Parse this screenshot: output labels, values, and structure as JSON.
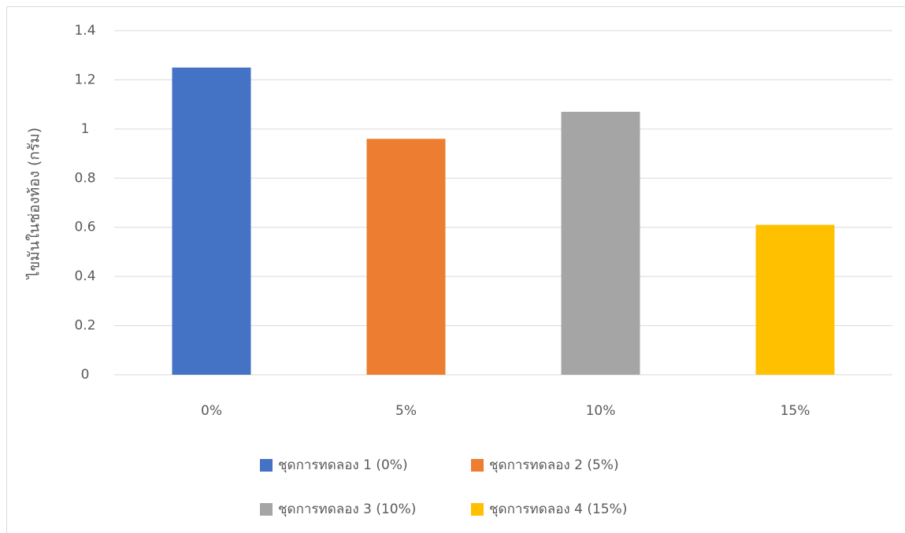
{
  "chart_data": {
    "type": "bar",
    "y_label": "ไขมันในช่องท้อง (กรัม)",
    "categories": [
      "0%",
      "5%",
      "10%",
      "15%"
    ],
    "series": [
      {
        "name": "ชุดการทดลอง 1 (0%)",
        "color": "#4472c4",
        "values": [
          1.25,
          null,
          null,
          null
        ]
      },
      {
        "name": "ชุดการทดลอง 2 (5%)",
        "color": "#ed7d31",
        "values": [
          null,
          0.96,
          null,
          null
        ]
      },
      {
        "name": "ชุดการทดลอง 3 (10%)",
        "color": "#a5a5a5",
        "values": [
          null,
          null,
          1.07,
          null
        ]
      },
      {
        "name": "ชุดการทดลอง 4 (15%)",
        "color": "#ffc000",
        "values": [
          null,
          null,
          null,
          0.61
        ]
      }
    ],
    "ylim": [
      0,
      1.4
    ],
    "yticks": [
      0,
      0.2,
      0.4,
      0.6,
      0.8,
      1,
      1.2,
      1.4
    ],
    "grid": true,
    "legend": "bottom"
  }
}
